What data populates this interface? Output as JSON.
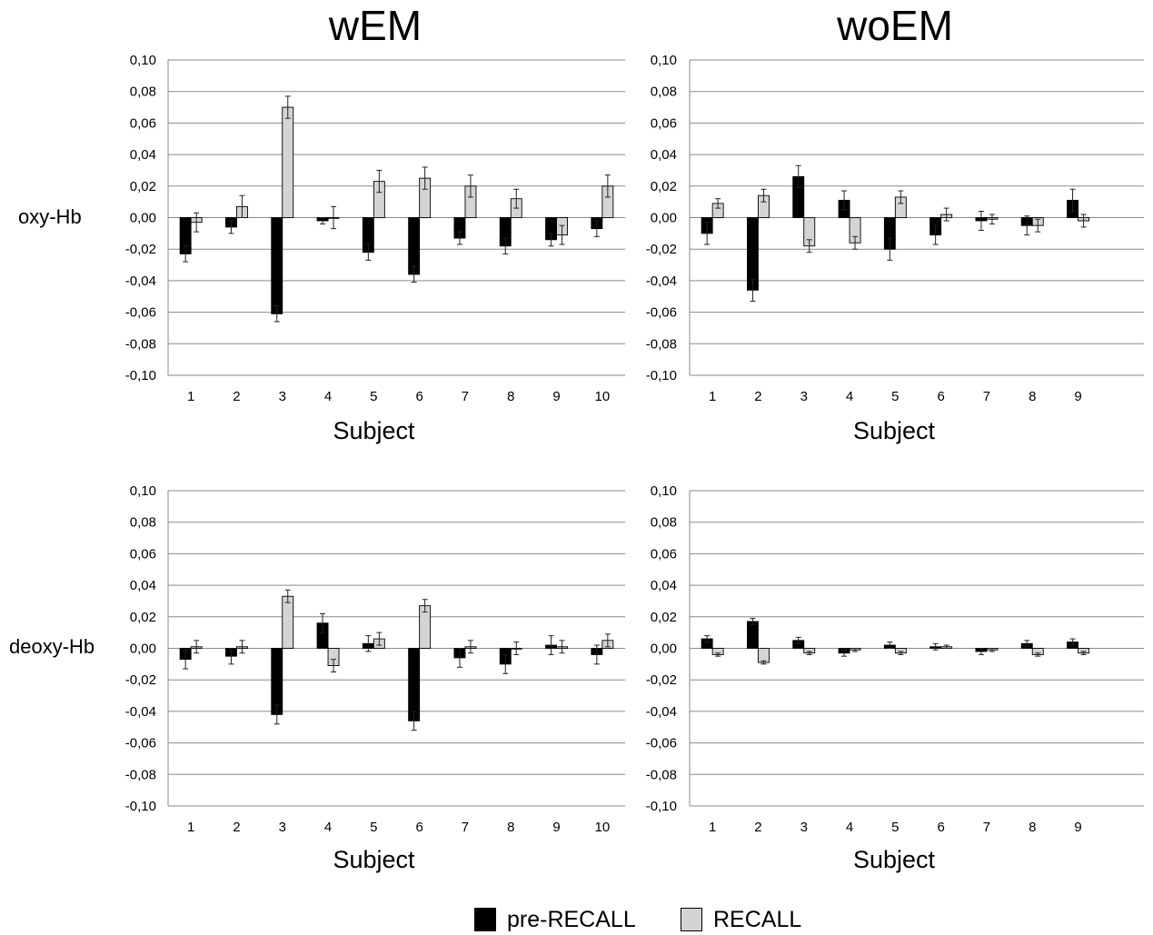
{
  "titles": {
    "left": "wEM",
    "right": "woEM"
  },
  "row_labels": {
    "top": "oxy-Hb",
    "bottom": "deoxy-Hb"
  },
  "legend": [
    {
      "label": "pre-RECALL",
      "color": "#000000"
    },
    {
      "label": "RECALL",
      "color": "#d4d4d4"
    }
  ],
  "y_tick_labels": [
    "0,10",
    "0,08",
    "0,06",
    "0,04",
    "0,02",
    "0,00",
    "-0,02",
    "-0,04",
    "-0,06",
    "-0,08",
    "-0,10"
  ],
  "chart_data": [
    {
      "type": "bar",
      "panel": "wEM oxy-Hb",
      "xlabel": "Subject",
      "ylim": [
        -0.1,
        0.1
      ],
      "grid": true,
      "categories": [
        "1",
        "2",
        "3",
        "4",
        "5",
        "6",
        "7",
        "8",
        "9",
        "10"
      ],
      "series": [
        {
          "name": "pre-RECALL",
          "values": [
            -0.023,
            -0.006,
            -0.061,
            -0.002,
            -0.022,
            -0.036,
            -0.013,
            -0.018,
            -0.014,
            -0.007
          ],
          "errors": [
            0.005,
            0.004,
            0.005,
            0.002,
            0.005,
            0.005,
            0.004,
            0.005,
            0.004,
            0.005
          ]
        },
        {
          "name": "RECALL",
          "values": [
            -0.003,
            0.007,
            0.07,
            0.0,
            0.023,
            0.025,
            0.02,
            0.012,
            -0.011,
            0.02
          ],
          "errors": [
            0.006,
            0.007,
            0.007,
            0.007,
            0.007,
            0.007,
            0.007,
            0.006,
            0.006,
            0.007
          ]
        }
      ]
    },
    {
      "type": "bar",
      "panel": "woEM oxy-Hb",
      "xlabel": "Subject",
      "ylim": [
        -0.1,
        0.1
      ],
      "grid": true,
      "categories": [
        "1",
        "2",
        "3",
        "4",
        "5",
        "6",
        "7",
        "8",
        "9"
      ],
      "series": [
        {
          "name": "pre-RECALL",
          "values": [
            -0.01,
            -0.046,
            0.026,
            0.011,
            -0.02,
            -0.011,
            -0.002,
            -0.005,
            0.011
          ],
          "errors": [
            0.007,
            0.007,
            0.007,
            0.006,
            0.007,
            0.006,
            0.006,
            0.006,
            0.007
          ]
        },
        {
          "name": "RECALL",
          "values": [
            0.009,
            0.014,
            -0.018,
            -0.016,
            0.013,
            0.002,
            -0.001,
            -0.005,
            -0.002
          ],
          "errors": [
            0.003,
            0.004,
            0.004,
            0.004,
            0.004,
            0.004,
            0.003,
            0.004,
            0.004
          ]
        }
      ]
    },
    {
      "type": "bar",
      "panel": "wEM deoxy-Hb",
      "xlabel": "Subject",
      "ylim": [
        -0.1,
        0.1
      ],
      "grid": true,
      "categories": [
        "1",
        "2",
        "3",
        "4",
        "5",
        "6",
        "7",
        "8",
        "9",
        "10"
      ],
      "series": [
        {
          "name": "pre-RECALL",
          "values": [
            -0.007,
            -0.005,
            -0.042,
            0.016,
            0.003,
            -0.046,
            -0.006,
            -0.01,
            0.002,
            -0.004
          ],
          "errors": [
            0.006,
            0.005,
            0.006,
            0.006,
            0.005,
            0.006,
            0.006,
            0.006,
            0.006,
            0.006
          ]
        },
        {
          "name": "RECALL",
          "values": [
            0.001,
            0.001,
            0.033,
            -0.011,
            0.006,
            0.027,
            0.001,
            0.0,
            0.001,
            0.005
          ],
          "errors": [
            0.004,
            0.004,
            0.004,
            0.004,
            0.004,
            0.004,
            0.004,
            0.004,
            0.004,
            0.004
          ]
        }
      ]
    },
    {
      "type": "bar",
      "panel": "woEM deoxy-Hb",
      "xlabel": "Subject",
      "ylim": [
        -0.1,
        0.1
      ],
      "grid": true,
      "categories": [
        "1",
        "2",
        "3",
        "4",
        "5",
        "6",
        "7",
        "8",
        "9"
      ],
      "series": [
        {
          "name": "pre-RECALL",
          "values": [
            0.006,
            0.017,
            0.005,
            -0.003,
            0.002,
            0.001,
            -0.002,
            0.003,
            0.004
          ],
          "errors": [
            0.002,
            0.002,
            0.002,
            0.002,
            0.002,
            0.002,
            0.002,
            0.002,
            0.002
          ]
        },
        {
          "name": "RECALL",
          "values": [
            -0.004,
            -0.009,
            -0.003,
            -0.001,
            -0.003,
            0.001,
            -0.001,
            -0.004,
            -0.003
          ],
          "errors": [
            0.001,
            0.001,
            0.001,
            0.001,
            0.001,
            0.001,
            0.001,
            0.001,
            0.001
          ]
        }
      ]
    }
  ]
}
